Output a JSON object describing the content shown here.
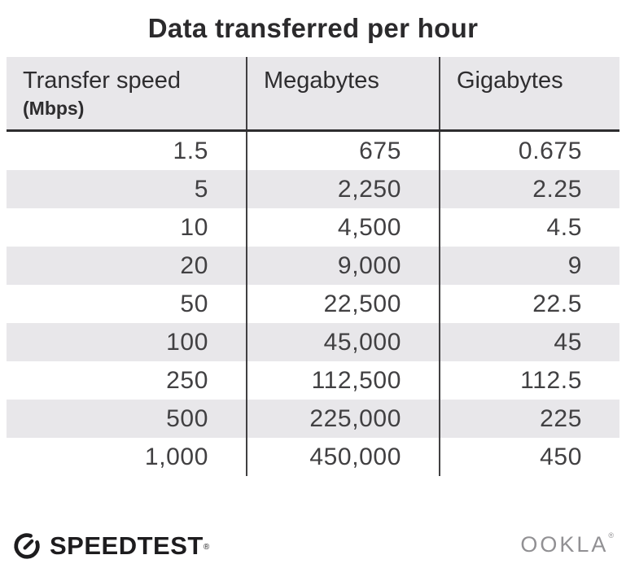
{
  "title": "Data transferred per hour",
  "table": {
    "columns": [
      {
        "label": "Transfer speed",
        "sublabel": "(Mbps)"
      },
      {
        "label": "Megabytes",
        "sublabel": ""
      },
      {
        "label": "Gigabytes",
        "sublabel": ""
      }
    ],
    "rows": [
      [
        "1.5",
        "675",
        "0.675"
      ],
      [
        "5",
        "2,250",
        "2.25"
      ],
      [
        "10",
        "4,500",
        "4.5"
      ],
      [
        "20",
        "9,000",
        "9"
      ],
      [
        "50",
        "22,500",
        "22.5"
      ],
      [
        "100",
        "45,000",
        "45"
      ],
      [
        "250",
        "112,500",
        "112.5"
      ],
      [
        "500",
        "225,000",
        "225"
      ],
      [
        "1,000",
        "450,000",
        "450"
      ]
    ]
  },
  "chart_data": {
    "type": "table",
    "title": "Data transferred per hour",
    "columns": [
      "Transfer speed (Mbps)",
      "Megabytes",
      "Gigabytes"
    ],
    "rows": [
      [
        1.5,
        675,
        0.675
      ],
      [
        5,
        2250,
        2.25
      ],
      [
        10,
        4500,
        4.5
      ],
      [
        20,
        9000,
        9
      ],
      [
        50,
        22500,
        22.5
      ],
      [
        100,
        45000,
        45
      ],
      [
        250,
        112500,
        112.5
      ],
      [
        500,
        225000,
        225
      ],
      [
        1000,
        450000,
        450
      ]
    ]
  },
  "footer": {
    "brand": "SPEEDTEST",
    "brand_mark": "®",
    "attribution": "OOKLA",
    "attribution_mark": "®"
  },
  "colors": {
    "header_bg": "#e8e7ea",
    "stripe_bg": "#e8e7ea",
    "divider": "#414042",
    "header_border": "#2e2d2f",
    "title_text": "#2b2a2c",
    "cell_text": "#414042",
    "brand_text": "#1d1c1e",
    "ookla_gray": "#919093"
  }
}
